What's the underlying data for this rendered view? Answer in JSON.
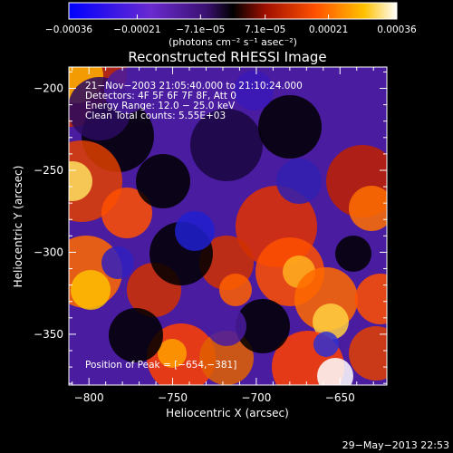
{
  "chart_data": {
    "type": "heatmap",
    "title": "Reconstructed RHESSI Image",
    "xlabel": "Heliocentric X (arcsec)",
    "ylabel": "Heliocentric Y (arcsec)",
    "xlim": [
      -812,
      -622
    ],
    "ylim": [
      -381,
      -187
    ],
    "x_ticks": [
      -800,
      -750,
      -700,
      -650
    ],
    "x_tick_labels": [
      "−800",
      "−750",
      "−700",
      "−650"
    ],
    "y_ticks": [
      -200,
      -250,
      -300,
      -350
    ],
    "y_tick_labels": [
      "−200",
      "−250",
      "−300",
      "−350"
    ],
    "colorbar": {
      "range": [
        -0.00036,
        0.00036
      ],
      "tick_values": [
        -0.00036,
        -0.00021,
        -7.1e-05,
        7.1e-05,
        0.00021,
        0.00036
      ],
      "tick_labels": [
        "−0.00036",
        "−0.00021",
        "−7.1e−05",
        "7.1e−05",
        "0.00021",
        "0.00036"
      ],
      "units": "(photons cm⁻² s⁻¹ asec⁻²)"
    },
    "annotations": [
      "21−Nov−2003 21:05:40.000 to 21:10:24.000",
      "Detectors: 4F 5F 6F 7F 8F, Att 0",
      "Energy Range: 12.0 − 25.0 keV",
      "Clean    Total counts: 5.55E+03"
    ],
    "peak_label": "Position of Peak = [−654,−381]",
    "peak": [
      -654,
      -381
    ]
  },
  "footer_timestamp": "29−May−2013 22:53",
  "colors": {
    "background": "#000000",
    "text": "#ffffff",
    "colormap_low": "#0000ff",
    "colormap_mid_low": "#7030c0",
    "colormap_mid": "#000000",
    "colormap_mid_high": "#c02000",
    "colormap_high": "#ffffff"
  }
}
